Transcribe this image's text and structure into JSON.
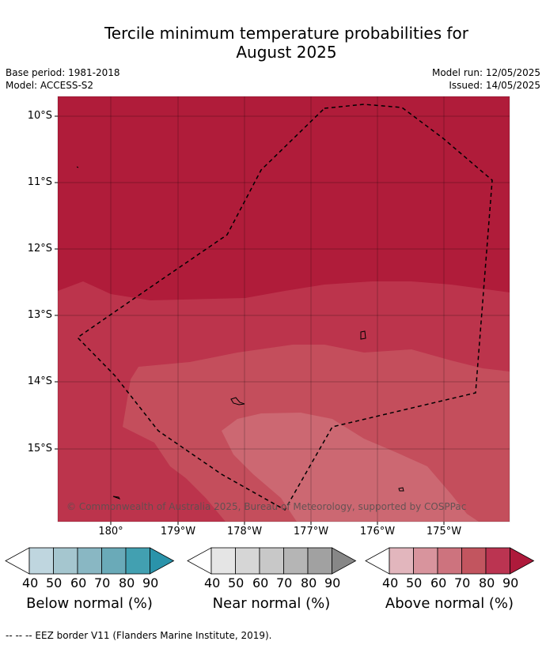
{
  "title_line1": "Tercile minimum temperature probabilities for",
  "title_line2": "August 2025",
  "meta": {
    "base_period": "Base period: 1981-2018",
    "model": "Model: ACCESS-S2",
    "model_run": "Model run: 12/05/2025",
    "issued": "Issued: 14/05/2025"
  },
  "map": {
    "lat_labels": [
      "10°S",
      "11°S",
      "12°S",
      "13°S",
      "14°S",
      "15°S"
    ],
    "lon_labels": [
      "180°",
      "179°W",
      "178°W",
      "177°W",
      "176°W",
      "175°W"
    ],
    "copyright": "© Commonwealth of Australia 2025, Bureau of Meteorology, supported by COSPPac",
    "colors": {
      "above_90": "#b01c3a",
      "above_80": "#bc344c",
      "above_70": "#c44e5c",
      "above_60": "#cc6872"
    }
  },
  "colorbars": [
    {
      "title": "Below normal (%)",
      "ticks": [
        "40",
        "50",
        "60",
        "70",
        "80",
        "90"
      ],
      "colors": [
        "#ffffff",
        "#bfd6df",
        "#a5c6cf",
        "#89b7c3",
        "#6aaab8",
        "#42a0b1",
        "#2a93aa"
      ]
    },
    {
      "title": "Near normal (%)",
      "ticks": [
        "40",
        "50",
        "60",
        "70",
        "80",
        "90"
      ],
      "colors": [
        "#ffffff",
        "#e5e5e5",
        "#d6d6d6",
        "#c8c8c8",
        "#b5b5b5",
        "#a1a1a1",
        "#878787"
      ]
    },
    {
      "title": "Above normal (%)",
      "ticks": [
        "40",
        "50",
        "60",
        "70",
        "80",
        "90"
      ],
      "colors": [
        "#ffffff",
        "#e2b6bd",
        "#d8949d",
        "#cd737e",
        "#c2555f",
        "#bb3451",
        "#ae1a3b"
      ]
    }
  ],
  "footnote": "--  --  -- EEZ border V11 (Flanders Marine Institute, 2019)."
}
